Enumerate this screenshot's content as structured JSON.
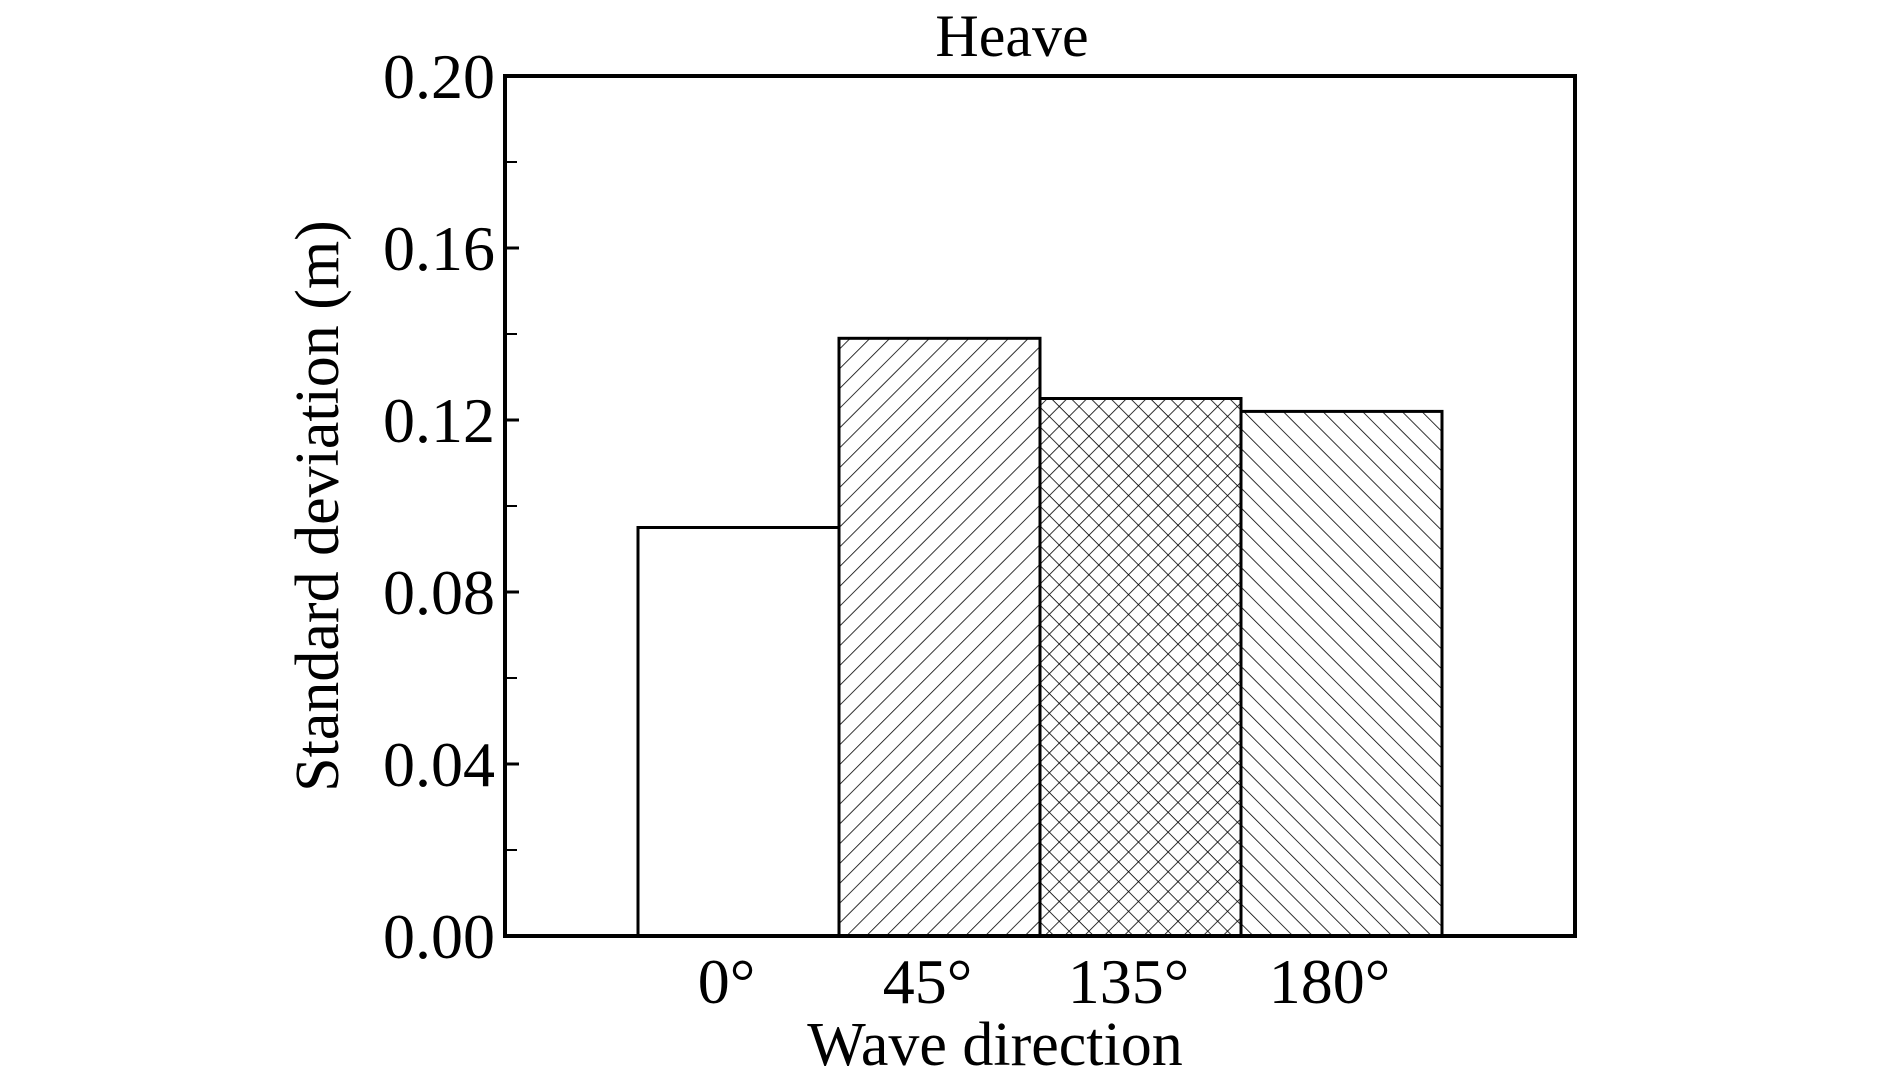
{
  "chart_data": {
    "type": "bar",
    "title": "Heave",
    "xlabel": "Wave direction",
    "ylabel": "Standard deviation (m)",
    "categories": [
      "0°",
      "45°",
      "135°",
      "180°"
    ],
    "values": [
      0.095,
      0.139,
      0.125,
      0.122
    ],
    "ylim": [
      0,
      0.2
    ],
    "yticks": [
      "0.00",
      "0.04",
      "0.08",
      "0.12",
      "0.16",
      "0.20"
    ],
    "patterns": [
      "none",
      "diagonal-up",
      "crosshatch",
      "diagonal-down"
    ],
    "grid": false,
    "colors": {
      "line": "#000000",
      "fill": "#ffffff"
    }
  }
}
